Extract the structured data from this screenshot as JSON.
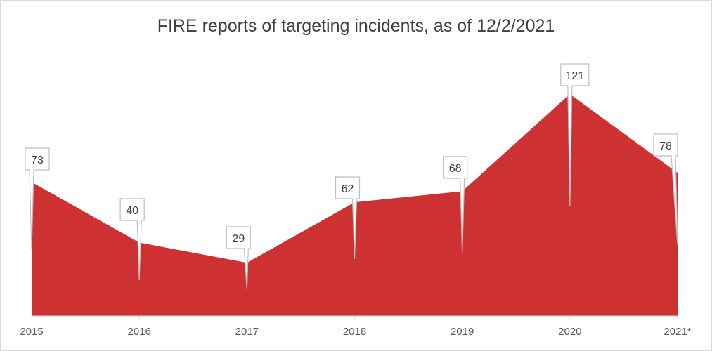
{
  "chart_data": {
    "type": "area",
    "title": "FIRE reports of targeting incidents, as of 12/2/2021",
    "categories": [
      "2015",
      "2016",
      "2017",
      "2018",
      "2019",
      "2020",
      "2021*"
    ],
    "values": [
      73,
      40,
      29,
      62,
      68,
      121,
      78
    ],
    "xlabel": "",
    "ylabel": "",
    "ylim": [
      0,
      121
    ],
    "grid": false,
    "legend": "none",
    "data_labels": "callouts",
    "color": "#CD3131"
  }
}
